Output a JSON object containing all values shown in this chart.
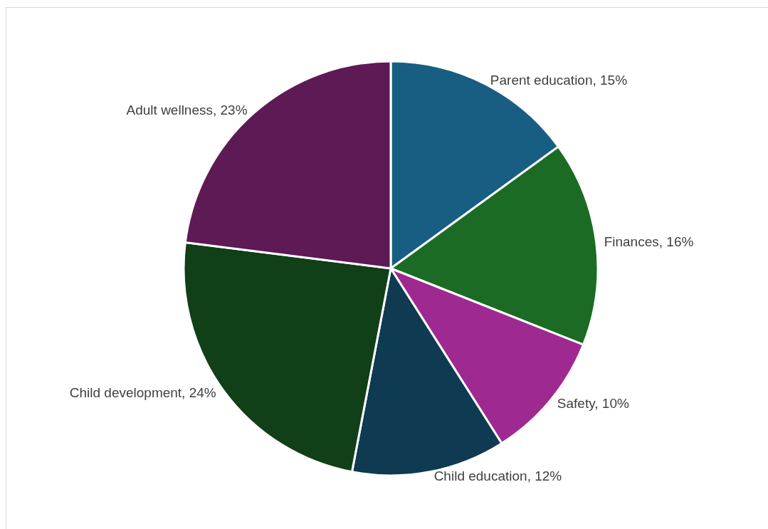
{
  "chart_data": {
    "type": "pie",
    "categories": [
      "Parent education",
      "Finances",
      "Safety",
      "Child education",
      "Child development",
      "Adult wellness"
    ],
    "values": [
      15,
      16,
      10,
      12,
      24,
      23
    ],
    "colors": [
      "#175e82",
      "#1b6b24",
      "#9e2a91",
      "#0e3a52",
      "#113f18",
      "#5e1a55"
    ],
    "value_labels": [
      "15%",
      "16%",
      "10%",
      "12%",
      "24%",
      "23%"
    ],
    "legend": false
  }
}
